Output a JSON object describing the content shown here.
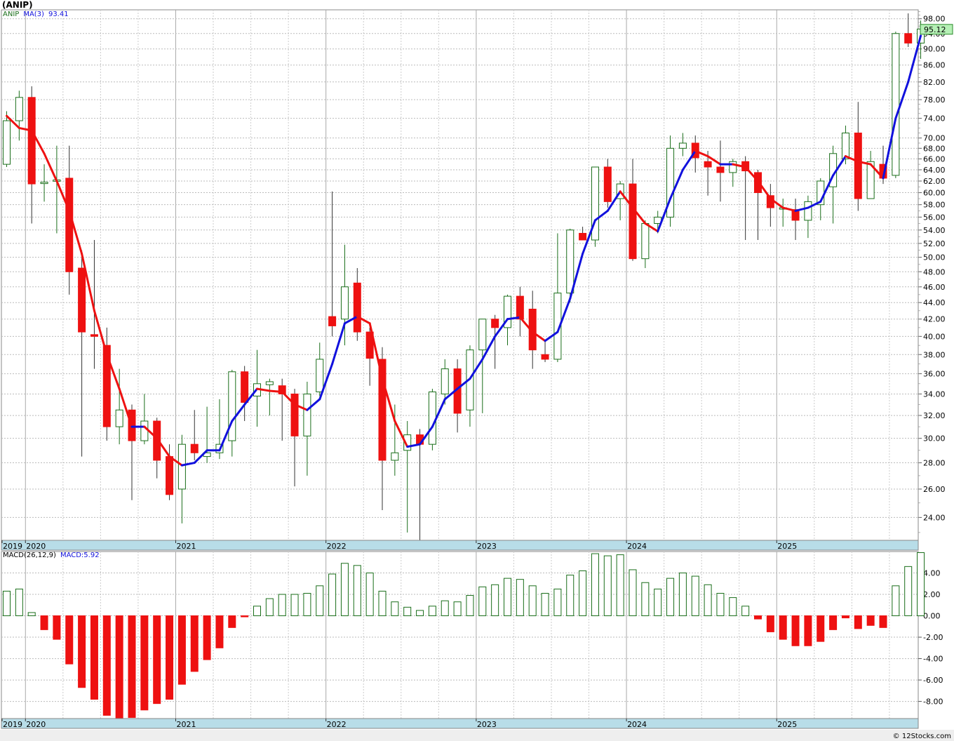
{
  "title": "(ANIP)",
  "credit": "© 12Stocks.com",
  "colors": {
    "up_candle": "#1a6e1a",
    "down_candle": "#ee1111",
    "ma_up": "#1111dd",
    "ma_down": "#ee1111",
    "macd_pos": "#1a6e1a",
    "macd_neg": "#ee1111",
    "axis_band": "#b8dde8",
    "last_price_box": "#b6f0b6"
  },
  "price_panel": {
    "legend": {
      "symbol": "ANIP",
      "ma_label": "MA(3)",
      "ma_value": "93.41"
    },
    "last_price": "95.12",
    "scale": "log",
    "y_ticks": [
      "98.00",
      "94.00",
      "90.00",
      "86.00",
      "82.00",
      "78.00",
      "74.00",
      "70.00",
      "68.00",
      "66.00",
      "64.00",
      "62.00",
      "60.00",
      "58.00",
      "56.00",
      "54.00",
      "52.00",
      "50.00",
      "48.00",
      "46.00",
      "44.00",
      "42.00",
      "40.00",
      "38.00",
      "36.00",
      "34.00",
      "32.00",
      "30.00",
      "28.00",
      "26.00",
      "24.00"
    ],
    "grid": true
  },
  "macd_panel": {
    "legend": {
      "label": "MACD(26,12,9)",
      "value_label": "MACD:5.92"
    },
    "y_ticks": [
      "4.00",
      "2.00",
      "0.00",
      "-2.00",
      "-4.00",
      "-6.00",
      "-8.00"
    ],
    "grid": true
  },
  "x_axis_labels": [
    "2019",
    "2020",
    "2021",
    "2022",
    "2023",
    "2024",
    "2025"
  ],
  "chart_data": [
    {
      "type": "candlestick",
      "period": "monthly",
      "start": "2019-11",
      "ylim": [
        22.5,
        100.5
      ],
      "ohlc": [
        [
          65.0,
          75.5,
          64.5,
          73.5
        ],
        [
          73.5,
          80.0,
          69.5,
          78.5
        ],
        [
          78.5,
          81.0,
          55.0,
          61.5
        ],
        [
          61.8,
          65.0,
          58.5,
          61.8
        ],
        [
          62.2,
          68.5,
          53.5,
          62.2
        ],
        [
          62.5,
          68.5,
          45.0,
          48.0
        ],
        [
          48.5,
          51.0,
          28.5,
          40.5
        ],
        [
          40.2,
          52.5,
          36.5,
          40.0
        ],
        [
          39.0,
          41.0,
          29.8,
          31.0
        ],
        [
          31.0,
          36.5,
          29.5,
          32.5
        ],
        [
          32.5,
          33.0,
          25.2,
          29.8
        ],
        [
          29.8,
          34.0,
          29.5,
          31.5
        ],
        [
          31.5,
          31.8,
          26.8,
          28.2
        ],
        [
          28.5,
          29.5,
          25.2,
          25.6
        ],
        [
          26.0,
          30.3,
          23.6,
          29.5
        ],
        [
          29.5,
          32.5,
          28.2,
          28.8
        ],
        [
          28.5,
          32.8,
          28.0,
          28.8
        ],
        [
          28.8,
          33.5,
          28.3,
          29.5
        ],
        [
          29.8,
          36.4,
          28.5,
          36.2
        ],
        [
          36.2,
          36.8,
          31.5,
          33.2
        ],
        [
          33.8,
          38.5,
          31.0,
          35.0
        ],
        [
          34.9,
          35.5,
          32.0,
          35.2
        ],
        [
          34.8,
          35.5,
          29.8,
          34.0
        ],
        [
          34.0,
          34.5,
          26.2,
          30.2
        ],
        [
          30.2,
          35.2,
          27.0,
          34.0
        ],
        [
          34.2,
          39.3,
          33.8,
          37.5
        ],
        [
          42.3,
          60.2,
          40.0,
          41.2
        ],
        [
          42.0,
          51.8,
          39.0,
          46.0
        ],
        [
          46.5,
          48.5,
          39.5,
          40.5
        ],
        [
          40.5,
          41.0,
          34.8,
          37.6
        ],
        [
          37.5,
          38.8,
          24.5,
          28.2
        ],
        [
          28.2,
          33.0,
          27.0,
          28.8
        ],
        [
          29.0,
          31.5,
          23.0,
          30.3
        ],
        [
          30.3,
          30.8,
          22.5,
          29.5
        ],
        [
          29.5,
          34.5,
          29.0,
          34.2
        ],
        [
          34.0,
          37.5,
          33.0,
          36.5
        ],
        [
          36.5,
          37.5,
          30.5,
          32.2
        ],
        [
          32.5,
          39.0,
          31.0,
          38.5
        ],
        [
          38.5,
          42.0,
          32.2,
          42.0
        ],
        [
          42.0,
          42.5,
          36.5,
          41.0
        ],
        [
          41.0,
          45.0,
          39.0,
          44.8
        ],
        [
          44.8,
          46.0,
          40.0,
          42.0
        ],
        [
          43.2,
          45.5,
          36.5,
          38.5
        ],
        [
          38.0,
          39.5,
          37.2,
          37.5
        ],
        [
          37.5,
          53.5,
          37.2,
          45.2
        ],
        [
          45.2,
          54.2,
          44.0,
          54.0
        ],
        [
          53.5,
          54.5,
          52.5,
          52.5
        ],
        [
          52.5,
          64.5,
          51.5,
          64.5
        ],
        [
          64.5,
          66.0,
          57.5,
          58.5
        ],
        [
          59.0,
          62.0,
          55.5,
          61.5
        ],
        [
          61.5,
          66.0,
          49.5,
          49.8
        ],
        [
          49.8,
          55.5,
          48.5,
          55.0
        ],
        [
          55.0,
          57.0,
          53.5,
          56.0
        ],
        [
          56.0,
          70.5,
          54.5,
          68.0
        ],
        [
          68.0,
          71.0,
          66.5,
          69.0
        ],
        [
          69.0,
          70.5,
          63.5,
          66.2
        ],
        [
          65.5,
          67.5,
          59.5,
          64.5
        ],
        [
          64.5,
          69.5,
          58.5,
          63.5
        ],
        [
          63.5,
          66.0,
          61.0,
          65.5
        ],
        [
          65.5,
          66.5,
          52.5,
          63.8
        ],
        [
          63.5,
          64.0,
          52.5,
          60.0
        ],
        [
          59.5,
          61.5,
          54.5,
          57.5
        ],
        [
          57.5,
          59.0,
          54.5,
          57.5
        ],
        [
          57.2,
          59.0,
          52.5,
          55.5
        ],
        [
          55.5,
          59.5,
          52.8,
          58.5
        ],
        [
          58.0,
          62.5,
          55.5,
          62.0
        ],
        [
          61.0,
          68.5,
          55.0,
          67.0
        ],
        [
          66.0,
          72.5,
          65.0,
          71.0
        ],
        [
          71.0,
          77.5,
          57.0,
          59.0
        ],
        [
          59.0,
          67.5,
          59.0,
          65.5
        ],
        [
          65.0,
          68.5,
          61.5,
          62.5
        ],
        [
          63.0,
          94.5,
          62.5,
          94.0
        ],
        [
          94.0,
          99.5,
          90.5,
          91.5
        ],
        [
          91.5,
          97.5,
          87.5,
          95.2
        ]
      ],
      "ma": [
        74.5,
        72.0,
        71.5,
        67.0,
        62.0,
        57.0,
        50.5,
        43.0,
        38.0,
        34.5,
        31.0,
        31.0,
        30.0,
        28.5,
        27.8,
        28.0,
        29.0,
        29.0,
        31.5,
        33.0,
        34.5,
        34.3,
        34.2,
        33.0,
        32.5,
        33.5,
        37.0,
        41.5,
        42.3,
        41.5,
        35.5,
        31.5,
        29.3,
        29.5,
        31.0,
        33.5,
        34.5,
        35.5,
        37.5,
        40.0,
        42.0,
        42.2,
        40.5,
        39.5,
        40.5,
        44.5,
        50.5,
        55.5,
        57.0,
        60.2,
        57.5,
        55.0,
        53.8,
        59.0,
        64.0,
        67.5,
        66.5,
        65.0,
        65.0,
        64.5,
        62.0,
        59.0,
        57.5,
        57.0,
        57.5,
        58.5,
        63.0,
        66.5,
        65.5,
        65.0,
        62.5,
        74.0,
        82.0,
        93.4
      ]
    },
    {
      "type": "bar",
      "name": "MACD(26,12,9)",
      "period": "monthly",
      "start": "2019-11",
      "ylim": [
        -9.6,
        6.0
      ],
      "values": [
        2.3,
        2.5,
        0.3,
        -1.3,
        -2.2,
        -4.5,
        -6.7,
        -7.8,
        -9.3,
        -9.6,
        -9.5,
        -8.8,
        -8.2,
        -7.8,
        -6.4,
        -5.2,
        -4.1,
        -3.0,
        -1.1,
        -0.1,
        0.9,
        1.6,
        2.0,
        2.0,
        2.1,
        2.8,
        3.9,
        4.9,
        4.7,
        4.0,
        2.3,
        1.3,
        0.8,
        0.5,
        0.9,
        1.4,
        1.3,
        1.9,
        2.7,
        2.9,
        3.5,
        3.4,
        2.8,
        2.1,
        2.5,
        3.8,
        4.2,
        5.8,
        5.6,
        5.7,
        4.3,
        3.1,
        2.5,
        3.5,
        4.0,
        3.7,
        2.9,
        2.1,
        1.7,
        0.9,
        -0.3,
        -1.5,
        -2.2,
        -2.8,
        -2.8,
        -2.4,
        -1.3,
        -0.2,
        -1.2,
        -0.9,
        -1.1,
        2.8,
        4.6,
        5.9
      ]
    }
  ]
}
